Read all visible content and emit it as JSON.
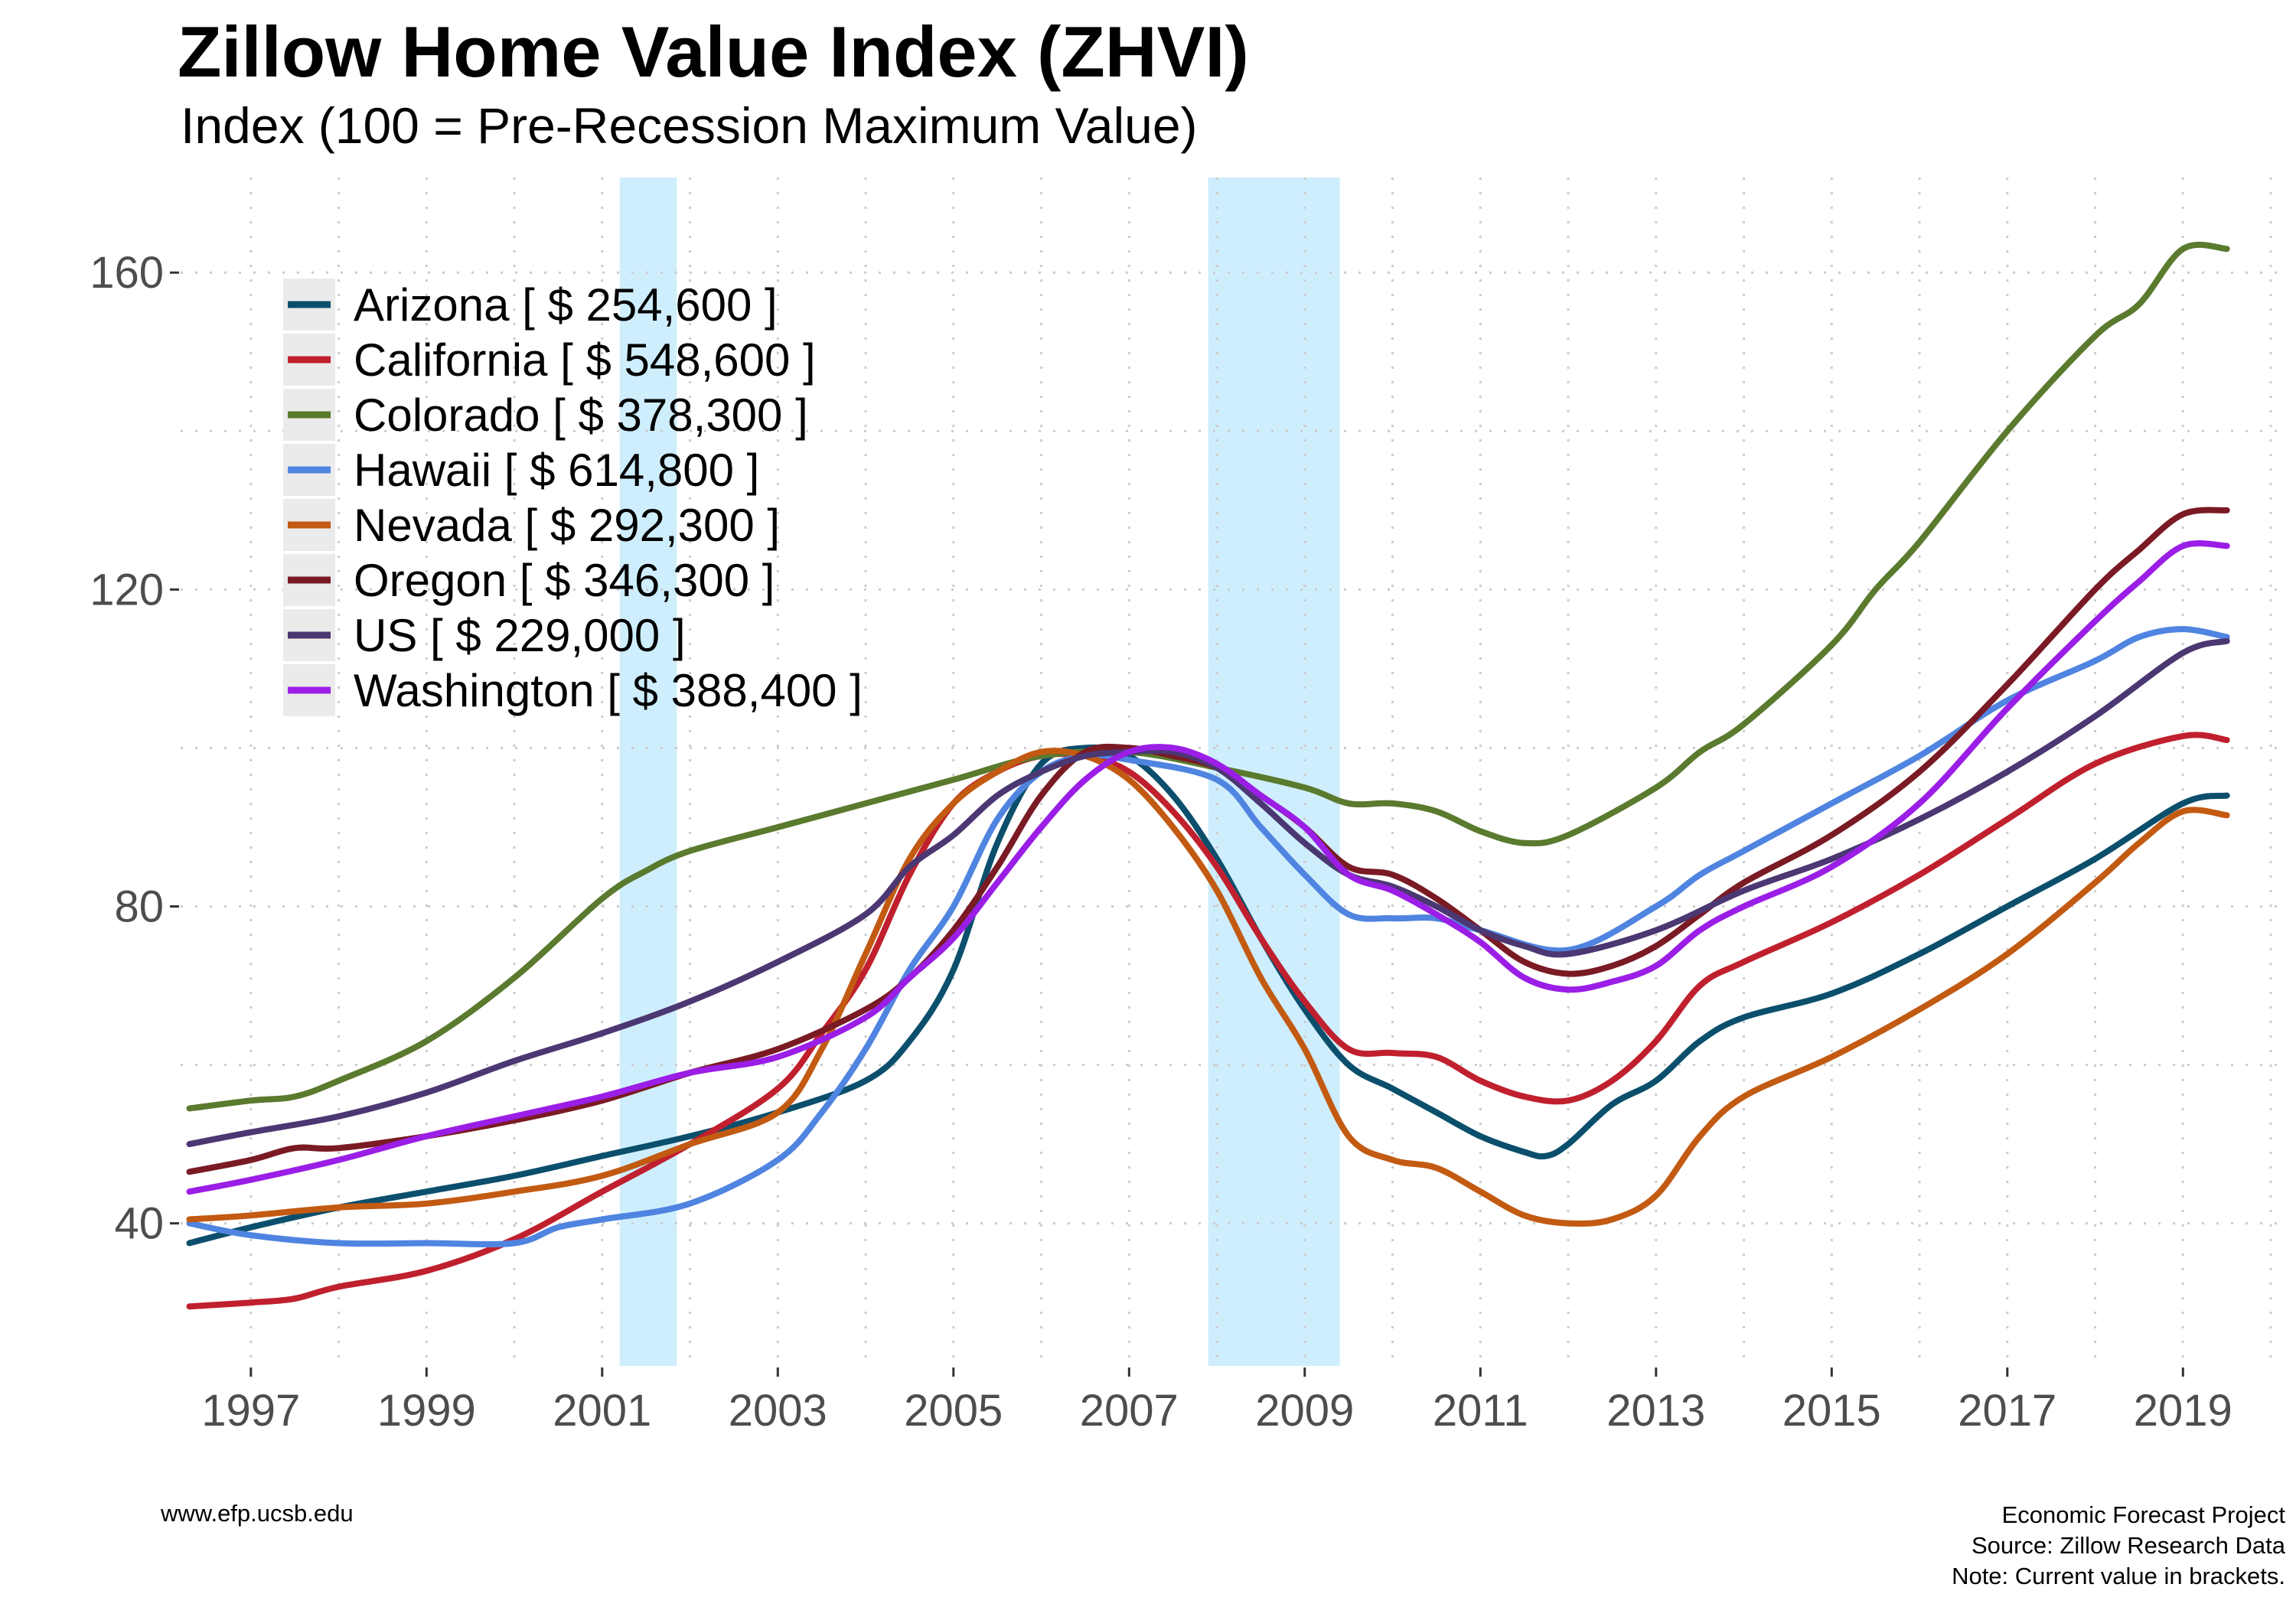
{
  "title": "Zillow Home Value Index (ZHVI)",
  "subtitle": "Index (100 = Pre-Recession Maximum Value)",
  "footer": {
    "left": "www.efp.ucsb.edu",
    "right": [
      "Economic Forecast Project",
      "Source: Zillow Research Data",
      "Note: Current value in brackets."
    ]
  },
  "chart_data": {
    "type": "line",
    "xlim": [
      1996.2,
      2020.2
    ],
    "ylim": [
      22,
      172
    ],
    "yticks": [
      40,
      80,
      120,
      160
    ],
    "ytick_labels": [
      "40",
      "80",
      "120",
      "160"
    ],
    "xticks": [
      1997,
      1999,
      2001,
      2003,
      2005,
      2007,
      2009,
      2011,
      2013,
      2015,
      2017,
      2019
    ],
    "xtick_labels": [
      "1997",
      "1999",
      "2001",
      "2003",
      "2005",
      "2007",
      "2009",
      "2011",
      "2013",
      "2015",
      "2017",
      "2019"
    ],
    "grid": true,
    "legend_position": "top-left",
    "recessions": [
      {
        "start": 2001.2,
        "end": 2001.85
      },
      {
        "start": 2007.9,
        "end": 2009.4
      }
    ],
    "series": [
      {
        "name": "Arizona [ $ 254,600 ]",
        "color": "#0b4f6c",
        "x": [
          1996.3,
          1997,
          1998,
          1999,
          2000,
          2001,
          2002,
          2003,
          2004,
          2004.5,
          2005,
          2005.5,
          2006,
          2006.5,
          2007,
          2007.5,
          2008,
          2008.5,
          2009,
          2009.5,
          2010,
          2010.5,
          2011,
          2011.5,
          2011.75,
          2012,
          2012.5,
          2013,
          2013.5,
          2014,
          2015,
          2016,
          2017,
          2018,
          2019,
          2019.5
        ],
        "y": [
          37.5,
          39.5,
          42,
          44,
          46,
          48.5,
          51,
          54,
          58,
          63,
          72,
          88,
          98,
          100,
          99,
          94,
          86,
          76,
          67,
          60,
          57,
          54,
          51,
          49,
          48.5,
          50,
          55,
          58,
          63,
          66,
          69,
          74,
          80,
          86,
          93,
          94
        ]
      },
      {
        "name": "California [ $ 548,600 ]",
        "color": "#c0202e",
        "x": [
          1996.3,
          1997,
          1997.5,
          1998,
          1999,
          2000,
          2001,
          2002,
          2003,
          2003.5,
          2004,
          2004.5,
          2005,
          2005.5,
          2006,
          2006.5,
          2007,
          2007.5,
          2008,
          2008.5,
          2009,
          2009.5,
          2010,
          2010.5,
          2011,
          2011.5,
          2012,
          2012.5,
          2013,
          2013.5,
          2014,
          2015,
          2016,
          2017,
          2018,
          2019,
          2019.5
        ],
        "y": [
          29.5,
          30,
          30.5,
          32,
          34,
          38,
          44,
          50,
          57,
          64,
          72,
          84,
          93,
          97,
          99,
          99,
          97,
          92,
          85,
          76,
          68,
          62,
          61.5,
          61,
          58,
          56,
          55.5,
          58,
          63,
          70,
          73,
          78,
          84,
          91,
          98,
          101.5,
          101
        ]
      },
      {
        "name": "Colorado [ $ 378,300 ]",
        "color": "#5a7a2e",
        "x": [
          1996.3,
          1997,
          1997.5,
          1998,
          1999,
          2000,
          2001,
          2001.5,
          2002,
          2003,
          2004,
          2005,
          2006,
          2007,
          2008,
          2009,
          2009.5,
          2010,
          2010.5,
          2011,
          2011.5,
          2012,
          2013,
          2013.5,
          2014,
          2015,
          2015.5,
          2016,
          2017,
          2018,
          2018.5,
          2019,
          2019.5
        ],
        "y": [
          54.5,
          55.5,
          56,
          58,
          63,
          71,
          81,
          84.5,
          87,
          90,
          93,
          96,
          99,
          99.5,
          97.5,
          95,
          93,
          93,
          92,
          89.5,
          88,
          89,
          95,
          99.5,
          103,
          113,
          120,
          126,
          140,
          152,
          156,
          163,
          163
        ]
      },
      {
        "name": "Hawaii [ $ 614,800 ]",
        "color": "#4f84e0",
        "x": [
          1996.3,
          1997,
          1998,
          1999,
          2000,
          2000.5,
          2001,
          2002,
          2003,
          2003.5,
          2004,
          2004.5,
          2005,
          2005.5,
          2006,
          2006.5,
          2007,
          2008,
          2008.5,
          2009,
          2009.5,
          2010,
          2010.5,
          2011,
          2012,
          2013,
          2013.5,
          2014,
          2015,
          2016,
          2017,
          2018,
          2018.5,
          2019,
          2019.5
        ],
        "y": [
          40,
          38.5,
          37.5,
          37.5,
          37.5,
          39.5,
          40.5,
          42.5,
          48,
          54,
          62,
          72,
          80,
          91,
          97,
          99,
          98.5,
          96,
          90,
          84,
          79,
          78.5,
          78.5,
          77,
          74.5,
          80,
          84,
          87,
          93,
          99,
          106,
          111,
          114,
          115,
          114
        ]
      },
      {
        "name": "Nevada [ $ 292,300 ]",
        "color": "#c25a12",
        "x": [
          1996.3,
          1997,
          1998,
          1999,
          2000,
          2001,
          2002,
          2003,
          2003.5,
          2004,
          2004.5,
          2005,
          2005.5,
          2006,
          2006.5,
          2007,
          2007.5,
          2008,
          2008.5,
          2009,
          2009.5,
          2010,
          2010.5,
          2011,
          2011.5,
          2012,
          2012.5,
          2013,
          2013.5,
          2014,
          2015,
          2016,
          2017,
          2018,
          2018.5,
          2019,
          2019.5
        ],
        "y": [
          40.5,
          41,
          42,
          42.5,
          44,
          46,
          50,
          54,
          62,
          74,
          86,
          93,
          97,
          99.5,
          99,
          96,
          90,
          82,
          71,
          62,
          51,
          48,
          47,
          44,
          41,
          40,
          40.5,
          43.5,
          51,
          56,
          61,
          67,
          74,
          83,
          88,
          92,
          91.5
        ]
      },
      {
        "name": "Oregon [ $ 346,300 ]",
        "color": "#7a1a24",
        "x": [
          1996.3,
          1997,
          1997.5,
          1998,
          1999,
          2000,
          2001,
          2002,
          2003,
          2004,
          2004.5,
          2005,
          2005.5,
          2006,
          2006.5,
          2007,
          2007.5,
          2008,
          2008.5,
          2009,
          2009.5,
          2010,
          2010.5,
          2011,
          2011.5,
          2012,
          2012.5,
          2013,
          2013.5,
          2014,
          2015,
          2016,
          2017,
          2018,
          2018.5,
          2019,
          2019.5
        ],
        "y": [
          46.5,
          48,
          49.5,
          49.5,
          51,
          53,
          55.5,
          59,
          62,
          67,
          71,
          77,
          85,
          94,
          99.5,
          100,
          99,
          97.5,
          94,
          90,
          85,
          84,
          81,
          77,
          73,
          71.5,
          72.5,
          75,
          79,
          83,
          89,
          97,
          108,
          120,
          125,
          129.5,
          130
        ]
      },
      {
        "name": "US [ $ 229,000 ]",
        "color": "#4b3772",
        "x": [
          1996.3,
          1997,
          1998,
          1999,
          2000,
          2001,
          2002,
          2003,
          2004,
          2004.5,
          2005,
          2005.5,
          2006,
          2006.5,
          2007,
          2007.5,
          2008,
          2008.5,
          2009,
          2009.5,
          2010,
          2010.5,
          2011,
          2011.5,
          2012,
          2013,
          2014,
          2015,
          2016,
          2017,
          2018,
          2019,
          2019.5
        ],
        "y": [
          50,
          51.5,
          53.5,
          56.5,
          60.5,
          64,
          68,
          73,
          79,
          85,
          89,
          94,
          97,
          99,
          99.5,
          99.5,
          97.5,
          93,
          88,
          84,
          82.5,
          80,
          77,
          75,
          74,
          77,
          82,
          86,
          91,
          97,
          104,
          112,
          113.5
        ]
      },
      {
        "name": "Washington [ $ 388,400 ]",
        "color": "#9b1ee6",
        "x": [
          1996.3,
          1997,
          1998,
          1999,
          2000,
          2001,
          2002,
          2003,
          2004,
          2004.5,
          2005,
          2005.5,
          2006,
          2006.5,
          2007,
          2007.5,
          2008,
          2008.5,
          2009,
          2009.5,
          2010,
          2010.5,
          2011,
          2011.5,
          2012,
          2012.5,
          2013,
          2013.5,
          2014,
          2015,
          2016,
          2017,
          2018,
          2018.5,
          2019,
          2019.5
        ],
        "y": [
          44,
          45.5,
          48,
          51,
          53.5,
          56,
          59,
          61,
          66,
          71,
          76,
          83,
          90,
          96,
          99.5,
          100,
          98,
          94,
          90,
          84,
          82,
          79,
          75.5,
          71,
          69.5,
          70.5,
          72.5,
          77,
          80,
          85,
          93,
          105,
          116,
          121,
          125.5,
          125.5
        ]
      }
    ]
  }
}
